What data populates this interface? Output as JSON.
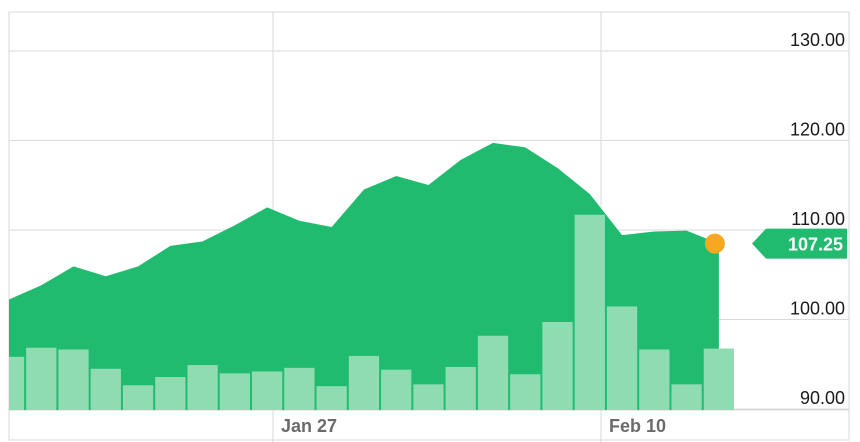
{
  "chart_data": {
    "type": "area",
    "title": "",
    "xlabel": "",
    "ylabel": "",
    "ylim": [
      90,
      130
    ],
    "y_ticks": [
      "130.00",
      "120.00",
      "110.00",
      "100.00",
      "90.00"
    ],
    "x_tick_labels": [
      "Jan 27",
      "Feb 10"
    ],
    "grid": true,
    "price_series": {
      "values": [
        101.0,
        102.6,
        104.7,
        103.6,
        104.7,
        107.0,
        107.5,
        109.3,
        111.3,
        109.8,
        109.1,
        113.3,
        114.8,
        113.8,
        116.6,
        118.5,
        118.0,
        115.7,
        112.8,
        108.2,
        108.6,
        108.7,
        107.25
      ]
    },
    "volume_series": {
      "values": [
        5.8,
        6.8,
        6.6,
        4.5,
        2.7,
        3.6,
        4.9,
        4.0,
        4.2,
        4.6,
        2.6,
        5.9,
        4.4,
        2.8,
        4.7,
        8.1,
        3.9,
        9.6,
        21.3,
        11.3,
        6.6,
        2.8,
        6.7
      ]
    },
    "last_value": 107.25,
    "last_value_label": "107.25",
    "colors": {
      "area": "#21bb6f",
      "volume": "#8fdcb3",
      "marker": "#f7a823",
      "grid": "#d9d9d9",
      "label_bg": "#21bb6f"
    }
  }
}
